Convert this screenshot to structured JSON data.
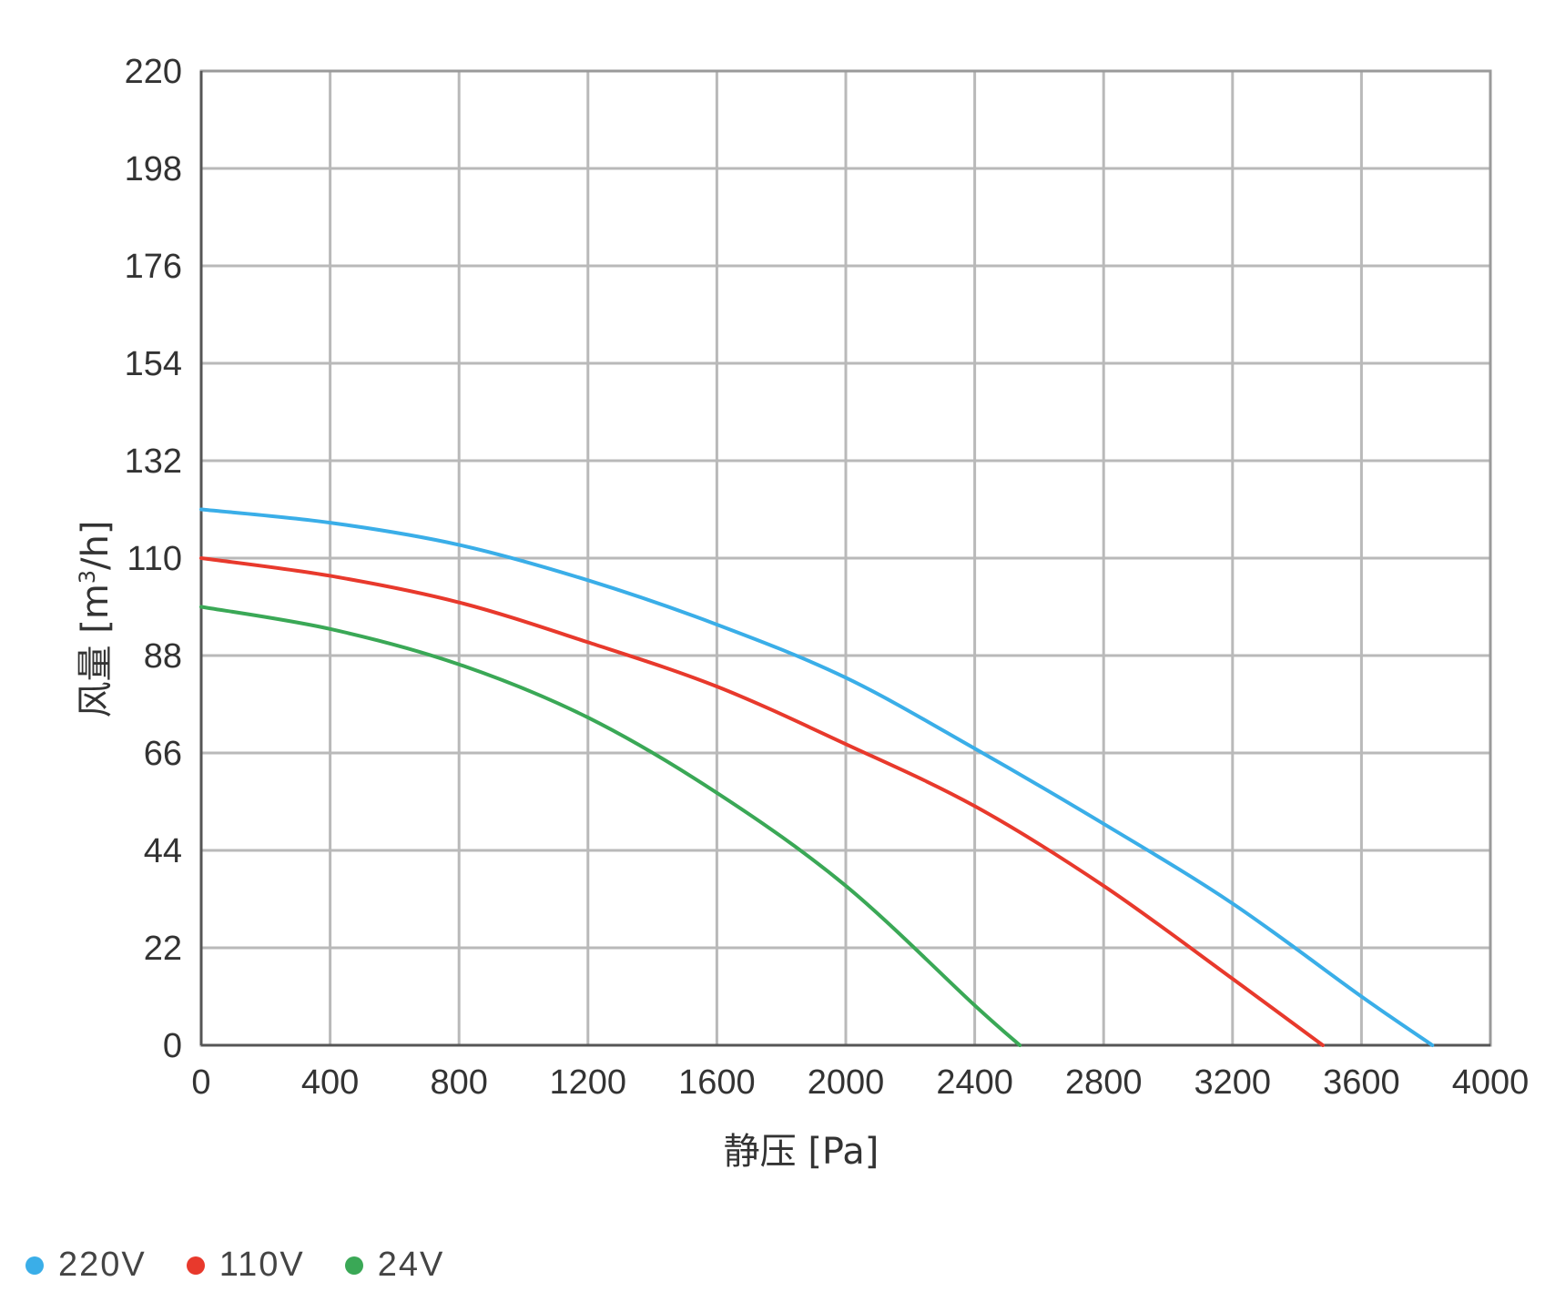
{
  "chart_data": {
    "type": "line",
    "title": "",
    "xlabel": "静压 [Pa]",
    "ylabel_main": "风量 [m",
    "ylabel_sup": "3",
    "ylabel_tail": "/h]",
    "xlim": [
      0,
      4000
    ],
    "ylim": [
      0,
      220
    ],
    "x_ticks": [
      "0",
      "400",
      "800",
      "1200",
      "1600",
      "2000",
      "2400",
      "2800",
      "3200",
      "3600",
      "4000"
    ],
    "y_ticks": [
      "0",
      "22",
      "44",
      "66",
      "88",
      "110",
      "132",
      "154",
      "176",
      "198",
      "220"
    ],
    "grid": true,
    "legend_position": "bottom-left",
    "series": [
      {
        "name": "220V",
        "color": "#3aaee8",
        "x": [
          0,
          400,
          800,
          1200,
          1600,
          2000,
          2400,
          2800,
          3200,
          3600,
          3820
        ],
        "y": [
          121,
          118,
          113,
          105,
          95,
          83,
          67,
          50,
          32,
          11,
          0
        ]
      },
      {
        "name": "110V",
        "color": "#e8392c",
        "x": [
          0,
          400,
          800,
          1200,
          1600,
          2000,
          2400,
          2800,
          3200,
          3480
        ],
        "y": [
          110,
          106,
          100,
          91,
          81,
          68,
          54,
          36,
          15,
          0
        ]
      },
      {
        "name": "24V",
        "color": "#3aa856",
        "x": [
          0,
          400,
          800,
          1200,
          1600,
          2000,
          2400,
          2540
        ],
        "y": [
          99,
          94,
          86,
          74,
          57,
          36,
          9,
          0
        ]
      }
    ]
  }
}
